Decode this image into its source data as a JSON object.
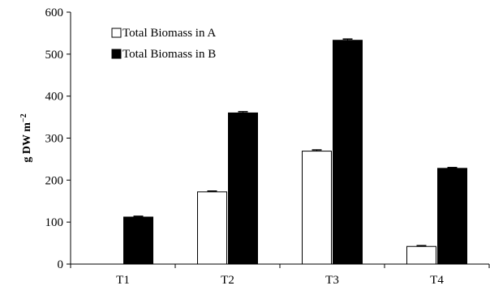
{
  "chart_data": {
    "type": "bar",
    "title": "",
    "xlabel": "",
    "ylabel": "g DW m",
    "ylabel_superscript": "−2",
    "categories": [
      "T1",
      "T2",
      "T3",
      "T4"
    ],
    "series": [
      {
        "name": "Total Biomass in A",
        "values": [
          0,
          172,
          269,
          42
        ],
        "errors": [
          0,
          2,
          3,
          2
        ],
        "color": "#ffffff"
      },
      {
        "name": "Total Biomass in B",
        "values": [
          112,
          360,
          533,
          228
        ],
        "errors": [
          2,
          3,
          3,
          2
        ],
        "color": "#000000"
      }
    ],
    "ylim": [
      0,
      600
    ],
    "yticks": [
      0,
      100,
      200,
      300,
      400,
      500,
      600
    ],
    "grid": false,
    "legend_position": "top-left"
  }
}
